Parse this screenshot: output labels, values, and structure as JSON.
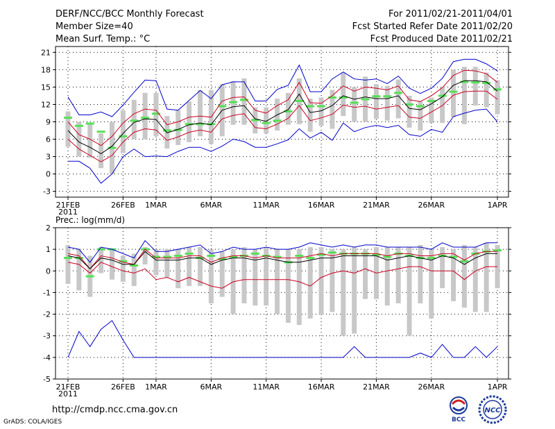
{
  "header": {
    "title": "DERF/NCC/BCC Monthly Forecast",
    "member_size": "Member Size=40",
    "variable": "Mean Surf. Temp.: °C",
    "period": "For 2011/02/21-2011/04/01",
    "refer_date": "Fcst Started Refer Date 2011/02/20",
    "produced_date": "Fcst Produced Date 2011/02/21"
  },
  "footer": {
    "url": "http://cmdp.ncc.cma.gov.cn",
    "credit": "GrADS: COLA/IGES",
    "logo_bcc": "BCC",
    "logo_ncc": "NCC"
  },
  "colors": {
    "max_min": "#0000cc",
    "std_band": "#cc0022",
    "mean": "#000000",
    "box": "#c8c8c8",
    "member": "#55e055"
  },
  "chart_data": [
    {
      "type": "line",
      "panel": "temperature",
      "ylabel": "°C",
      "ylim": [
        -4,
        22
      ],
      "yticks": [
        -3,
        0,
        3,
        6,
        9,
        12,
        15,
        18,
        21
      ],
      "x": [
        1,
        2,
        3,
        4,
        5,
        6,
        7,
        8,
        9,
        10,
        11,
        12,
        13,
        14,
        15,
        16,
        17,
        18,
        19,
        20,
        21,
        22,
        23,
        24,
        25,
        26,
        27,
        28,
        29,
        30,
        31,
        32,
        33,
        34,
        35,
        36,
        37,
        38,
        39,
        40
      ],
      "xticks": [
        {
          "x": 1,
          "label": "21FEB",
          "sub": "2011"
        },
        {
          "x": 6,
          "label": "26FEB"
        },
        {
          "x": 9,
          "label": "1MAR"
        },
        {
          "x": 14,
          "label": "6MAR"
        },
        {
          "x": 19,
          "label": "11MAR"
        },
        {
          "x": 24,
          "label": "16MAR"
        },
        {
          "x": 29,
          "label": "21MAR"
        },
        {
          "x": 34,
          "label": "26MAR"
        },
        {
          "x": 40,
          "label": "1APR"
        }
      ],
      "series": [
        {
          "name": "max",
          "values": [
            13.3,
            10.2,
            10.2,
            10.7,
            9.9,
            11.9,
            14.1,
            16.2,
            16.1,
            11.2,
            11.0,
            12.7,
            14.4,
            13.0,
            15.4,
            15.9,
            15.9,
            12.6,
            12.6,
            14.6,
            15.3,
            18.8,
            14.2,
            14.2,
            16.4,
            17.6,
            16.4,
            16.2,
            16.4,
            15.6,
            16.9,
            14.8,
            13.9,
            14.8,
            16.5,
            19.4,
            19.8,
            19.8,
            19.0,
            17.8
          ]
        },
        {
          "name": "std_upper",
          "values": [
            9.0,
            6.8,
            6.0,
            4.9,
            6.5,
            8.8,
            10.4,
            11.2,
            11.0,
            8.5,
            9.0,
            9.8,
            10.0,
            9.8,
            12.6,
            13.2,
            13.3,
            11.0,
            10.5,
            11.8,
            12.8,
            15.8,
            12.3,
            12.2,
            13.5,
            15.2,
            14.3,
            15.0,
            14.8,
            14.5,
            15.2,
            12.8,
            12.5,
            13.5,
            14.9,
            17.0,
            17.9,
            17.8,
            17.3,
            15.8
          ]
        },
        {
          "name": "mean",
          "values": [
            7.5,
            5.5,
            4.6,
            3.5,
            4.8,
            7.0,
            8.9,
            9.5,
            9.4,
            7.1,
            7.7,
            8.5,
            8.8,
            8.5,
            11.0,
            11.6,
            11.8,
            9.5,
            9.1,
            10.2,
            11.1,
            13.8,
            10.6,
            10.9,
            11.8,
            13.5,
            12.9,
            13.3,
            13.0,
            13.0,
            13.5,
            11.3,
            11.1,
            12.1,
            13.3,
            15.3,
            16.1,
            16.1,
            15.9,
            14.3
          ]
        },
        {
          "name": "std_lower",
          "values": [
            6.0,
            4.3,
            3.2,
            2.1,
            3.2,
            5.5,
            7.2,
            7.8,
            7.6,
            5.8,
            6.4,
            7.2,
            7.6,
            7.2,
            9.5,
            10.1,
            10.4,
            8.0,
            7.8,
            8.6,
            9.6,
            11.8,
            9.2,
            9.7,
            10.3,
            11.9,
            11.5,
            11.7,
            11.2,
            11.5,
            11.8,
            9.8,
            9.6,
            10.7,
            11.8,
            13.6,
            14.2,
            14.3,
            14.3,
            12.9
          ]
        },
        {
          "name": "min",
          "values": [
            2.2,
            2.2,
            1.0,
            -1.6,
            0.0,
            3.0,
            4.3,
            3.0,
            3.1,
            3.0,
            3.9,
            4.6,
            4.6,
            3.9,
            4.8,
            6.0,
            5.6,
            4.6,
            4.6,
            5.2,
            5.9,
            7.8,
            6.2,
            7.2,
            5.8,
            8.8,
            7.3,
            8.0,
            8.4,
            8.0,
            8.4,
            6.8,
            6.5,
            7.7,
            7.2,
            9.9,
            10.5,
            11.0,
            11.2,
            9.0
          ]
        }
      ],
      "boxes": {
        "low": [
          4.7,
          3.0,
          2.8,
          1.0,
          0.0,
          3.6,
          6.0,
          6.0,
          6.5,
          4.4,
          5.0,
          5.5,
          6.5,
          5.2,
          6.5,
          8.5,
          8.5,
          7.0,
          7.0,
          7.5,
          8.5,
          8.6,
          7.3,
          8.3,
          7.8,
          10.0,
          9.0,
          9.0,
          9.5,
          9.2,
          9.6,
          8.0,
          7.5,
          8.8,
          8.8,
          9.8,
          8.6,
          11.8,
          11.5,
          10.3
        ],
        "high": [
          10.8,
          9.0,
          8.6,
          7.0,
          9.0,
          11.0,
          12.8,
          14.0,
          14.0,
          10.0,
          11.0,
          12.5,
          14.5,
          14.5,
          15.5,
          16.0,
          16.5,
          11.5,
          11.5,
          13.0,
          14.0,
          16.5,
          13.0,
          13.2,
          14.5,
          17.5,
          15.0,
          16.8,
          15.5,
          15.2,
          16.3,
          13.5,
          12.5,
          13.2,
          15.0,
          18.0,
          18.5,
          18.5,
          17.5,
          16.2
        ]
      },
      "members": [
        9.7,
        8.3,
        8.7,
        7.3,
        4.5,
        6.5,
        9.2,
        9.7,
        10.4,
        7.5,
        7.6,
        8.6,
        8.6,
        8.6,
        11.7,
        12.4,
        12.8,
        9.3,
        8.8,
        9.2,
        10.8,
        12.6,
        11.7,
        11.7,
        13.2,
        13.2,
        12.3,
        12.9,
        13.4,
        13.4,
        14.0,
        12.0,
        11.7,
        12.6,
        13.5,
        14.2,
        15.9,
        15.8,
        15.7,
        14.6
      ]
    },
    {
      "type": "line",
      "panel": "precipitation",
      "ylabel": "Prec.: log(mm/d)",
      "ylim": [
        -5,
        2
      ],
      "yticks": [
        -5,
        -4,
        -3,
        -2,
        -1,
        0,
        1,
        2
      ],
      "x": [
        1,
        2,
        3,
        4,
        5,
        6,
        7,
        8,
        9,
        10,
        11,
        12,
        13,
        14,
        15,
        16,
        17,
        18,
        19,
        20,
        21,
        22,
        23,
        24,
        25,
        26,
        27,
        28,
        29,
        30,
        31,
        32,
        33,
        34,
        35,
        36,
        37,
        38,
        39,
        40
      ],
      "xticks": [
        {
          "x": 1,
          "label": "21FEB",
          "sub": "2011"
        },
        {
          "x": 6,
          "label": "26FEB"
        },
        {
          "x": 9,
          "label": "1MAR"
        },
        {
          "x": 14,
          "label": "6MAR"
        },
        {
          "x": 19,
          "label": "11MAR"
        },
        {
          "x": 24,
          "label": "16MAR"
        },
        {
          "x": 29,
          "label": "21MAR"
        },
        {
          "x": 34,
          "label": "26MAR"
        },
        {
          "x": 40,
          "label": "1APR"
        }
      ],
      "series": [
        {
          "name": "max",
          "values": [
            1.1,
            1.0,
            0.4,
            1.1,
            1.0,
            0.8,
            0.6,
            1.4,
            0.9,
            0.9,
            1.0,
            1.1,
            1.2,
            0.8,
            0.9,
            1.1,
            1.0,
            1.0,
            1.1,
            1.0,
            1.0,
            1.1,
            1.3,
            1.2,
            1.1,
            1.2,
            1.1,
            1.2,
            1.2,
            1.1,
            1.1,
            1.1,
            1.1,
            1.0,
            1.3,
            1.1,
            1.1,
            1.1,
            1.3,
            1.3
          ]
        },
        {
          "name": "std_upper",
          "values": [
            0.8,
            0.7,
            0.1,
            0.7,
            0.6,
            0.4,
            0.3,
            1.0,
            0.6,
            0.6,
            0.6,
            0.7,
            0.7,
            0.4,
            0.6,
            0.7,
            0.7,
            0.6,
            0.7,
            0.6,
            0.6,
            0.6,
            0.7,
            0.8,
            0.7,
            0.8,
            0.8,
            0.8,
            0.8,
            0.7,
            0.8,
            0.8,
            0.7,
            0.7,
            0.8,
            0.8,
            0.5,
            0.8,
            0.9,
            0.9
          ]
        },
        {
          "name": "mean",
          "values": [
            0.7,
            0.6,
            0.1,
            0.6,
            0.5,
            0.3,
            0.3,
            0.9,
            0.5,
            0.5,
            0.5,
            0.6,
            0.6,
            0.3,
            0.5,
            0.6,
            0.6,
            0.5,
            0.6,
            0.5,
            0.4,
            0.4,
            0.5,
            0.6,
            0.6,
            0.7,
            0.7,
            0.7,
            0.7,
            0.5,
            0.6,
            0.7,
            0.6,
            0.5,
            0.7,
            0.6,
            0.3,
            0.6,
            0.8,
            0.8
          ]
        },
        {
          "name": "std_lower",
          "values": [
            0.4,
            0.3,
            -0.1,
            0.4,
            0.2,
            0.0,
            -0.1,
            0.1,
            -0.4,
            -0.3,
            -0.5,
            -0.3,
            -0.5,
            -0.7,
            -0.8,
            -0.5,
            -0.4,
            -0.4,
            -0.4,
            -0.4,
            -0.4,
            -0.5,
            -0.7,
            -0.3,
            -0.1,
            0.0,
            -0.1,
            0.1,
            -0.1,
            0.0,
            0.1,
            0.2,
            0.2,
            0.0,
            0.0,
            0.0,
            -0.4,
            0.0,
            0.2,
            0.2
          ]
        },
        {
          "name": "min",
          "values": [
            -4.0,
            -2.8,
            -3.5,
            -2.7,
            -2.3,
            -3.2,
            -4.0,
            -4.0,
            -4.0,
            -4.0,
            -4.0,
            -4.0,
            -4.0,
            -4.0,
            -4.0,
            -4.0,
            -4.0,
            -4.0,
            -4.0,
            -4.0,
            -4.0,
            -4.0,
            -4.0,
            -4.0,
            -4.0,
            -4.0,
            -3.5,
            -4.0,
            -4.0,
            -4.0,
            -4.0,
            -4.0,
            -3.8,
            -4.0,
            -3.4,
            -4.0,
            -4.0,
            -3.5,
            -4.0,
            -3.5
          ]
        }
      ],
      "boxes": {
        "low": [
          -0.6,
          -0.9,
          -1.2,
          -0.1,
          -0.4,
          -0.5,
          -0.7,
          0.3,
          -0.2,
          -0.3,
          -0.8,
          -0.7,
          -0.7,
          -1.5,
          -1.2,
          -2.0,
          -1.5,
          -1.6,
          -1.6,
          -2.0,
          -2.4,
          -2.5,
          -2.2,
          -2.0,
          -1.9,
          -3.0,
          -2.9,
          -1.3,
          -1.3,
          -1.6,
          -1.5,
          -3.0,
          -1.5,
          -2.2,
          -0.8,
          -1.4,
          -1.7,
          -1.9,
          -1.9,
          -0.8
        ],
        "high": [
          1.2,
          1.0,
          0.7,
          1.1,
          1.0,
          0.7,
          0.8,
          1.1,
          1.0,
          1.0,
          1.0,
          1.1,
          1.1,
          1.0,
          0.9,
          1.0,
          1.1,
          1.0,
          1.1,
          1.0,
          1.0,
          1.0,
          1.1,
          1.1,
          1.0,
          1.0,
          1.1,
          1.0,
          1.1,
          1.1,
          1.1,
          1.1,
          1.2,
          1.0,
          1.1,
          1.0,
          1.2,
          1.1,
          1.3,
          1.2
        ]
      },
      "members": [
        0.6,
        0.6,
        -0.25,
        1.0,
        1.0,
        0.45,
        0.25,
        1.0,
        0.65,
        0.65,
        0.7,
        0.8,
        0.6,
        0.7,
        0.55,
        0.65,
        0.7,
        0.8,
        0.7,
        0.65,
        0.4,
        0.7,
        0.6,
        0.75,
        0.85,
        0.8,
        0.8,
        0.8,
        0.75,
        0.65,
        0.8,
        0.7,
        0.6,
        0.6,
        0.7,
        0.65,
        0.45,
        0.8,
        0.9,
        0.95
      ]
    }
  ]
}
